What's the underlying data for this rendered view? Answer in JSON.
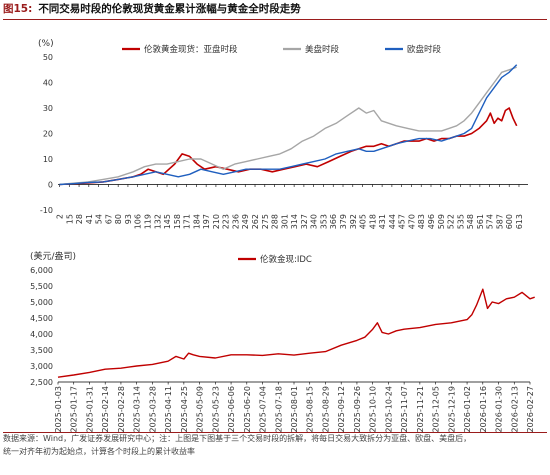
{
  "header": {
    "fig_label": "图15:",
    "title": "不同交易时段的伦敦现货黄金累计涨幅与黄金全时段走势"
  },
  "footer": {
    "line1": "数据来源：Wind，广发证券发展研究中心；注：上图是下图基于三个交易时段的拆解，将每日交易大致拆分为亚盘、欧盘、美盘后，",
    "line2": "统一对齐年初为起始点，计算各个时段上的累计收益率"
  },
  "chart_data": [
    {
      "type": "line",
      "unit_label": "(%)",
      "ylim": [
        -10,
        50
      ],
      "yticks": [
        -10,
        0,
        10,
        20,
        30,
        40,
        50
      ],
      "xticks": [
        "2",
        "15",
        "28",
        "41",
        "54",
        "67",
        "80",
        "93",
        "106",
        "119",
        "132",
        "145",
        "158",
        "171",
        "184",
        "197",
        "210",
        "223",
        "236",
        "249",
        "262",
        "275",
        "288",
        "301",
        "314",
        "327",
        "340",
        "353",
        "366",
        "379",
        "392",
        "405",
        "418",
        "431",
        "444",
        "457",
        "470",
        "483",
        "496",
        "509",
        "522",
        "535",
        "548",
        "561",
        "574",
        "587",
        "600",
        "613"
      ],
      "x_max": 625,
      "legend_position": "top",
      "grid": false,
      "series": [
        {
          "name": "伦敦黄金现货：亚盘时段",
          "color": "#c00000",
          "x": [
            2,
            20,
            40,
            60,
            80,
            100,
            110,
            120,
            130,
            140,
            155,
            165,
            175,
            185,
            195,
            210,
            225,
            240,
            255,
            270,
            285,
            300,
            315,
            330,
            345,
            360,
            375,
            390,
            400,
            410,
            420,
            430,
            440,
            450,
            460,
            470,
            480,
            490,
            500,
            510,
            520,
            530,
            540,
            550,
            560,
            570,
            575,
            580,
            585,
            590,
            595,
            600,
            605,
            610
          ],
          "y": [
            0,
            0.3,
            0.6,
            1,
            2,
            3,
            4,
            6,
            5,
            4,
            8,
            12,
            11,
            8,
            6,
            7,
            6,
            5,
            6,
            6,
            5,
            6,
            7,
            8,
            7,
            9,
            11,
            13,
            14,
            15,
            15,
            16,
            15,
            16,
            17,
            17,
            17,
            18,
            17,
            18,
            18,
            19,
            19,
            20,
            22,
            25,
            28,
            24,
            26,
            25,
            29,
            30,
            26,
            23
          ]
        },
        {
          "name": "美盘时段",
          "color": "#a6a6a6",
          "x": [
            2,
            20,
            40,
            60,
            80,
            100,
            115,
            130,
            145,
            160,
            175,
            190,
            205,
            220,
            235,
            250,
            265,
            280,
            295,
            310,
            325,
            340,
            355,
            370,
            385,
            400,
            410,
            420,
            430,
            440,
            450,
            465,
            480,
            495,
            510,
            520,
            530,
            540,
            550,
            560,
            570,
            580,
            590,
            600,
            610
          ],
          "y": [
            0,
            0.5,
            1,
            2,
            3,
            5,
            7,
            8,
            8,
            9,
            10,
            10,
            8,
            6,
            8,
            9,
            10,
            11,
            12,
            14,
            17,
            19,
            22,
            24,
            27,
            30,
            28,
            29,
            25,
            24,
            23,
            22,
            21,
            21,
            21,
            22,
            23,
            25,
            28,
            32,
            36,
            40,
            44,
            45,
            46
          ]
        },
        {
          "name": "欧盘时段",
          "color": "#1f5fbf",
          "x": [
            2,
            20,
            40,
            60,
            80,
            100,
            115,
            130,
            145,
            160,
            175,
            190,
            205,
            220,
            235,
            250,
            265,
            280,
            295,
            310,
            325,
            340,
            355,
            370,
            385,
            400,
            410,
            420,
            430,
            440,
            450,
            465,
            480,
            495,
            510,
            520,
            530,
            540,
            550,
            560,
            570,
            580,
            590,
            600,
            610
          ],
          "y": [
            0,
            0.3,
            0.8,
            1,
            2,
            3,
            4,
            5,
            4,
            3,
            4,
            6,
            5,
            4,
            5,
            6,
            6,
            6,
            6,
            7,
            8,
            9,
            10,
            12,
            13,
            14,
            13,
            13,
            14,
            15,
            16,
            17,
            18,
            18,
            17,
            18,
            19,
            20,
            22,
            28,
            34,
            38,
            42,
            44,
            47
          ]
        }
      ]
    },
    {
      "type": "line",
      "unit_label": "(美元/盎司)",
      "ylim": [
        2500,
        6000
      ],
      "yticks": [
        2500,
        3000,
        3500,
        4000,
        4500,
        5000,
        5500,
        6000
      ],
      "xticks": [
        "2025-01-03",
        "2025-01-17",
        "2025-01-31",
        "2025-02-14",
        "2025-02-28",
        "2025-03-14",
        "2025-03-28",
        "2025-04-11",
        "2025-04-25",
        "2025-05-09",
        "2025-05-23",
        "2025-06-06",
        "2025-06-20",
        "2025-07-04",
        "2025-07-18",
        "2025-08-01",
        "2025-08-15",
        "2025-08-29",
        "2025-09-12",
        "2025-09-26",
        "2025-10-10",
        "2025-10-24",
        "2025-11-07",
        "2025-11-21",
        "2025-12-05",
        "2025-12-19",
        "2026-01-02",
        "2026-01-16",
        "2026-01-30",
        "2026-02-13",
        "2026-02-27"
      ],
      "legend_position": "top",
      "grid": false,
      "series": [
        {
          "name": "伦敦金现:IDC",
          "color": "#c00000",
          "x": [
            0,
            1,
            2,
            3,
            4,
            5,
            6,
            7,
            7.5,
            8,
            8.3,
            8.6,
            9,
            10,
            11,
            12,
            13,
            14,
            15,
            16,
            17,
            18,
            19,
            19.5,
            20,
            20.3,
            20.6,
            21,
            21.5,
            22,
            23,
            24,
            25,
            26,
            26.3,
            26.6,
            27,
            27.3,
            27.6,
            28,
            28.5,
            29,
            29.5,
            30,
            30.3
          ],
          "y": [
            2650,
            2720,
            2800,
            2900,
            2930,
            3000,
            3050,
            3150,
            3300,
            3220,
            3400,
            3350,
            3300,
            3250,
            3350,
            3350,
            3330,
            3380,
            3340,
            3400,
            3450,
            3650,
            3800,
            3900,
            4150,
            4350,
            4050,
            4000,
            4100,
            4150,
            4200,
            4300,
            4350,
            4450,
            4600,
            4900,
            5400,
            4800,
            5000,
            4950,
            5100,
            5150,
            5300,
            5100,
            5150
          ]
        }
      ]
    }
  ]
}
